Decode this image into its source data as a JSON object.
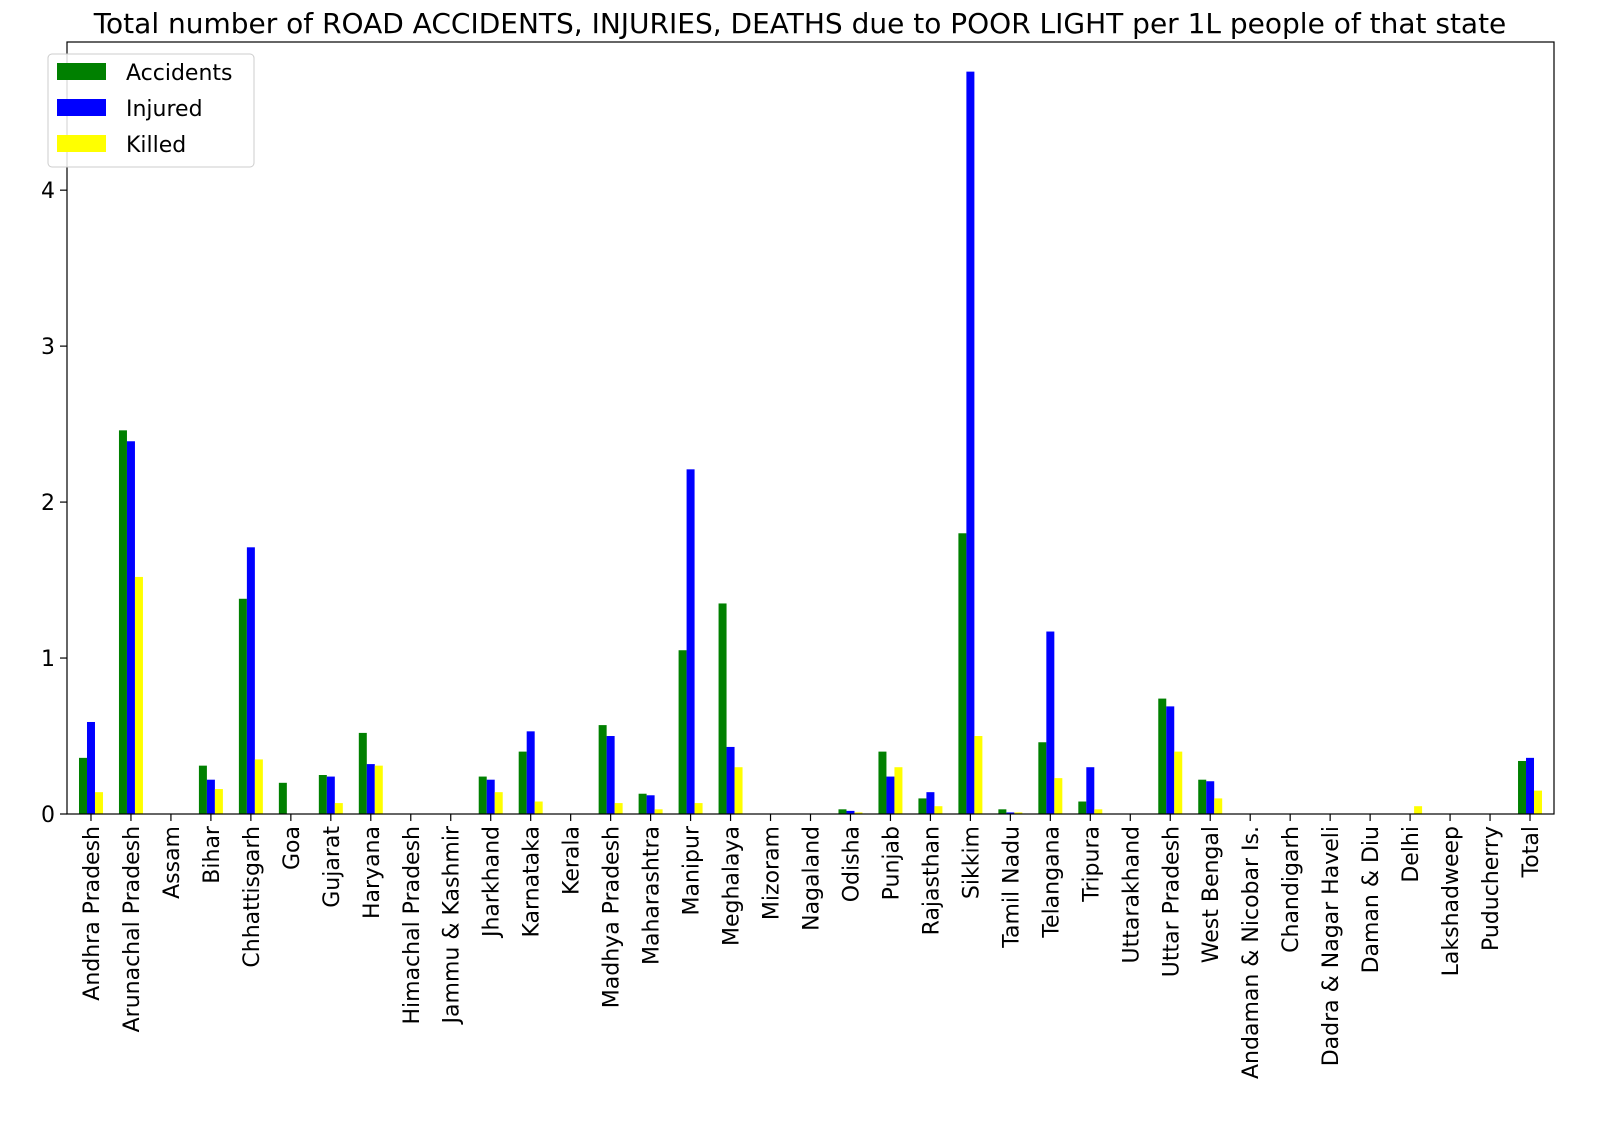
{
  "chart_data": {
    "type": "bar",
    "title": "Total number of ROAD ACCIDENTS, INJURIES, DEATHS due to POOR LIGHT per 1L people of that state",
    "xlabel": "",
    "ylabel": "",
    "ylim": [
      0,
      4.95
    ],
    "yticks": [
      "0",
      "1",
      "2",
      "3",
      "4"
    ],
    "grid": false,
    "legend_position": "top-left",
    "categories": [
      "Andhra Pradesh",
      "Arunachal Pradesh",
      "Assam",
      "Bihar",
      "Chhattisgarh",
      "Goa",
      "Gujarat",
      "Haryana",
      "Himachal Pradesh",
      "Jammu & Kashmir",
      "Jharkhand",
      "Karnataka",
      "Kerala",
      "Madhya Pradesh",
      "Maharashtra",
      "Manipur",
      "Meghalaya",
      "Mizoram",
      "Nagaland",
      "Odisha",
      "Punjab",
      "Rajasthan",
      "Sikkim",
      "Tamil Nadu",
      "Telangana",
      "Tripura",
      "Uttarakhand",
      "Uttar Pradesh",
      "West Bengal",
      "Andaman & Nicobar Is.",
      "Chandigarh",
      "Dadra & Nagar Haveli",
      "Daman & Diu",
      "Delhi",
      "Lakshadweep",
      "Puducherry",
      "Total"
    ],
    "series": [
      {
        "name": "Accidents",
        "color": "#008000",
        "values": [
          0.36,
          2.46,
          0,
          0.31,
          1.38,
          0.2,
          0.25,
          0.52,
          0,
          0,
          0.24,
          0.4,
          0,
          0.57,
          0.13,
          1.05,
          1.35,
          0,
          0,
          0.03,
          0.4,
          0.1,
          1.8,
          0.03,
          0.46,
          0.08,
          0,
          0.74,
          0.22,
          0,
          0,
          0,
          0,
          0,
          0,
          0,
          0.34
        ]
      },
      {
        "name": "Injured",
        "color": "#0000ff",
        "values": [
          0.59,
          2.39,
          0,
          0.22,
          1.71,
          0,
          0.24,
          0.32,
          0,
          0,
          0.22,
          0.53,
          0,
          0.5,
          0.12,
          2.21,
          0.43,
          0,
          0,
          0.02,
          0.24,
          0.14,
          4.76,
          0.01,
          1.17,
          0.3,
          0,
          0.69,
          0.21,
          0,
          0,
          0,
          0,
          0,
          0,
          0,
          0.36
        ]
      },
      {
        "name": "Killed",
        "color": "#ffff00",
        "values": [
          0.14,
          1.52,
          0,
          0.16,
          0.35,
          0,
          0.07,
          0.31,
          0,
          0,
          0.14,
          0.08,
          0,
          0.07,
          0.03,
          0.07,
          0.3,
          0,
          0,
          0.01,
          0.3,
          0.05,
          0.5,
          0.01,
          0.23,
          0.03,
          0,
          0.4,
          0.1,
          0,
          0,
          0,
          0,
          0.05,
          0,
          0,
          0.15
        ]
      }
    ]
  }
}
